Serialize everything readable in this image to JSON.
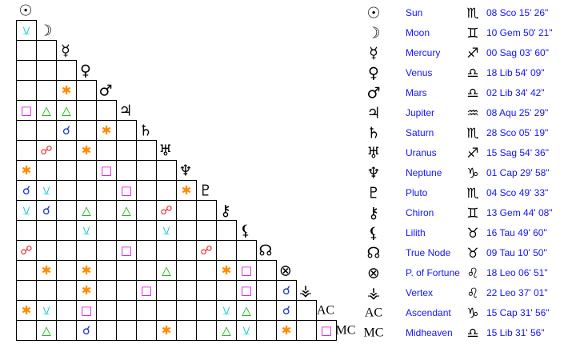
{
  "bodies": [
    {
      "glyph": "☉",
      "name": "Sun",
      "sign": "♏",
      "position": "08 Sco 15' 26\""
    },
    {
      "glyph": "☽",
      "name": "Moon",
      "sign": "♊",
      "position": "10 Gem 50' 21\""
    },
    {
      "glyph": "☿",
      "name": "Mercury",
      "sign": "♐",
      "position": "00 Sag 03' 60\""
    },
    {
      "glyph": "♀",
      "name": "Venus",
      "sign": "♎",
      "position": "18 Lib 54' 09\""
    },
    {
      "glyph": "♂",
      "name": "Mars",
      "sign": "♎",
      "position": "02 Lib 34' 42\""
    },
    {
      "glyph": "♃",
      "name": "Jupiter",
      "sign": "♒",
      "position": "08 Aqu 25' 29\""
    },
    {
      "glyph": "♄",
      "name": "Saturn",
      "sign": "♏",
      "position": "28 Sco 05' 19\""
    },
    {
      "glyph": "♅",
      "name": "Uranus",
      "sign": "♐",
      "position": "15 Sag 54' 36\""
    },
    {
      "glyph": "♆",
      "name": "Neptune",
      "sign": "♑",
      "position": "01 Cap 29' 58\""
    },
    {
      "glyph": "♇",
      "name": "Pluto",
      "sign": "♏",
      "position": "04 Sco 49' 33\""
    },
    {
      "glyph": "⚷",
      "name": "Chiron",
      "sign": "♊",
      "position": "13 Gem 44' 08\""
    },
    {
      "glyph": "⚸",
      "name": "Lilith",
      "sign": "♉",
      "position": "16 Tau 49' 60\""
    },
    {
      "glyph": "☊",
      "name": "True Node",
      "sign": "♉",
      "position": "09 Tau 10' 50\""
    },
    {
      "glyph": "⊗",
      "name": "P. of Fortune",
      "sign": "♌",
      "position": "18 Leo 06' 51\""
    },
    {
      "glyph": "⚶",
      "name": "Vertex",
      "sign": "♌",
      "position": "22 Leo 37' 01\""
    },
    {
      "glyph": "AC",
      "name": "Ascendant",
      "sign": "♑",
      "position": "15 Cap 31' 56\""
    },
    {
      "glyph": "MC",
      "name": "Midheaven",
      "sign": "♎",
      "position": "15 Lib 31' 56\""
    }
  ],
  "grid": [
    [
      "⚺"
    ],
    [
      null,
      null
    ],
    [
      null,
      null,
      null
    ],
    [
      null,
      null,
      "✱",
      null
    ],
    [
      "□",
      "△",
      "△",
      null,
      null
    ],
    [
      null,
      null,
      "☌",
      null,
      "✱",
      null
    ],
    [
      null,
      "☍",
      null,
      "✱",
      null,
      null,
      null
    ],
    [
      "✱",
      null,
      null,
      null,
      "□",
      null,
      null,
      null
    ],
    [
      "☌",
      "⚺",
      null,
      null,
      null,
      "□",
      null,
      null,
      "✱"
    ],
    [
      "⚺",
      "☌",
      null,
      "△",
      null,
      "△",
      null,
      "☍",
      null,
      null
    ],
    [
      null,
      null,
      null,
      "⚺",
      null,
      null,
      null,
      "⚺",
      null,
      null,
      null
    ],
    [
      "☍",
      null,
      null,
      null,
      null,
      "□",
      null,
      null,
      null,
      "☍",
      null,
      null
    ],
    [
      null,
      "✱",
      null,
      "✱",
      null,
      null,
      null,
      "△",
      null,
      null,
      "✱",
      "□",
      null
    ],
    [
      null,
      null,
      null,
      "✱",
      null,
      null,
      "□",
      null,
      null,
      null,
      null,
      "□",
      null,
      "☌"
    ],
    [
      "✱",
      "⚺",
      null,
      "□",
      null,
      null,
      null,
      null,
      null,
      null,
      "⚺",
      "△",
      null,
      "☌",
      null
    ],
    [
      null,
      "△",
      null,
      "☌",
      null,
      null,
      null,
      "✱",
      null,
      null,
      "△",
      "⚺",
      null,
      "✱",
      null,
      "□"
    ]
  ],
  "aspect_colors": {
    "⚺": "#00c8d0",
    "✱": "#ff8c00",
    "△": "#00b000",
    "□": "#e000e0",
    "☌": "#1030d0",
    "☍": "#e02020"
  }
}
